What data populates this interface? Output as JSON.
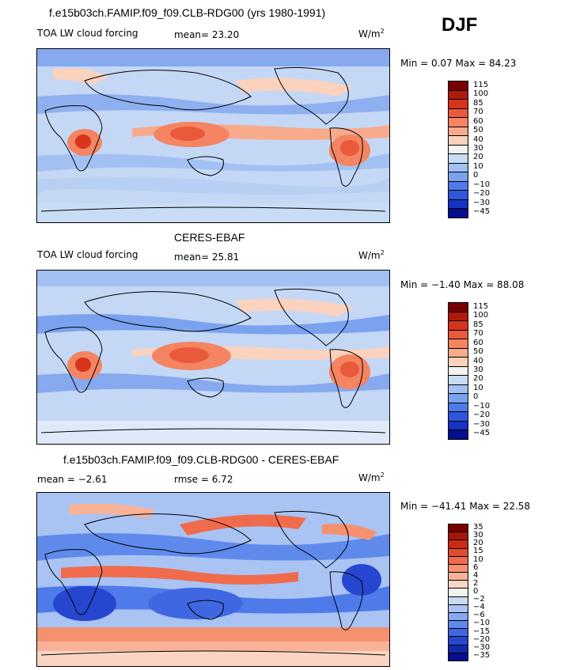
{
  "header": {
    "season": "DJF"
  },
  "panels": [
    {
      "title": "f.e15b03ch.FAMIP.f09_f09.CLB-RDG00 (yrs 1980-1991)",
      "left_label": "TOA LW cloud forcing",
      "mid_label": "mean=  23.20",
      "units": "W/m",
      "units_exp": "2",
      "minmax": "Min =   0.07 Max =  84.23",
      "colorbar_levels": [
        "115",
        "100",
        "85",
        "70",
        "60",
        "50",
        "40",
        "30",
        "20",
        "10",
        "0",
        "−10",
        "−20",
        "−30",
        "−45"
      ],
      "colorbar_colors": [
        "#7a0000",
        "#b01a0a",
        "#d6341c",
        "#e95a3c",
        "#f48462",
        "#f8ab8c",
        "#fbd2bd",
        "#f2f2f0",
        "#c9dcf5",
        "#a2c0f2",
        "#7aa2ef",
        "#4f7bea",
        "#2f56dd",
        "#1633c4",
        "#050e8f"
      ]
    },
    {
      "title": "CERES-EBAF",
      "left_label": "TOA LW cloud forcing",
      "mid_label": "mean=  25.81",
      "units": "W/m",
      "units_exp": "2",
      "minmax": "Min =  −1.40 Max =  88.08",
      "colorbar_levels": [
        "115",
        "100",
        "85",
        "70",
        "60",
        "50",
        "40",
        "30",
        "20",
        "10",
        "0",
        "−10",
        "−20",
        "−30",
        "−45"
      ],
      "colorbar_colors": [
        "#7a0000",
        "#b01a0a",
        "#d6341c",
        "#e95a3c",
        "#f48462",
        "#f8ab8c",
        "#fbd2bd",
        "#f2f2f0",
        "#c9dcf5",
        "#a2c0f2",
        "#7aa2ef",
        "#4f7bea",
        "#2f56dd",
        "#1633c4",
        "#050e8f"
      ]
    },
    {
      "title": "f.e15b03ch.FAMIP.f09_f09.CLB-RDG00 - CERES-EBAF",
      "left_label": "mean =   −2.61",
      "mid_label": "rmse =    6.72",
      "units": "W/m",
      "units_exp": "2",
      "minmax": "Min = −41.41 Max =  22.58",
      "colorbar_levels": [
        "35",
        "30",
        "20",
        "15",
        "10",
        "6",
        "4",
        "2",
        "0",
        "−2",
        "−4",
        "−6",
        "−10",
        "−15",
        "−20",
        "−30",
        "−35"
      ],
      "colorbar_colors": [
        "#7a0000",
        "#a6160a",
        "#cc2a18",
        "#e24a30",
        "#f06b4c",
        "#f6916f",
        "#f9b298",
        "#fcd4c3",
        "#f2f2f0",
        "#c9dcf5",
        "#a9c3f3",
        "#86a9ef",
        "#5f8aec",
        "#3f67e2",
        "#2746d0",
        "#1228aa",
        "#050e8f"
      ]
    }
  ]
}
